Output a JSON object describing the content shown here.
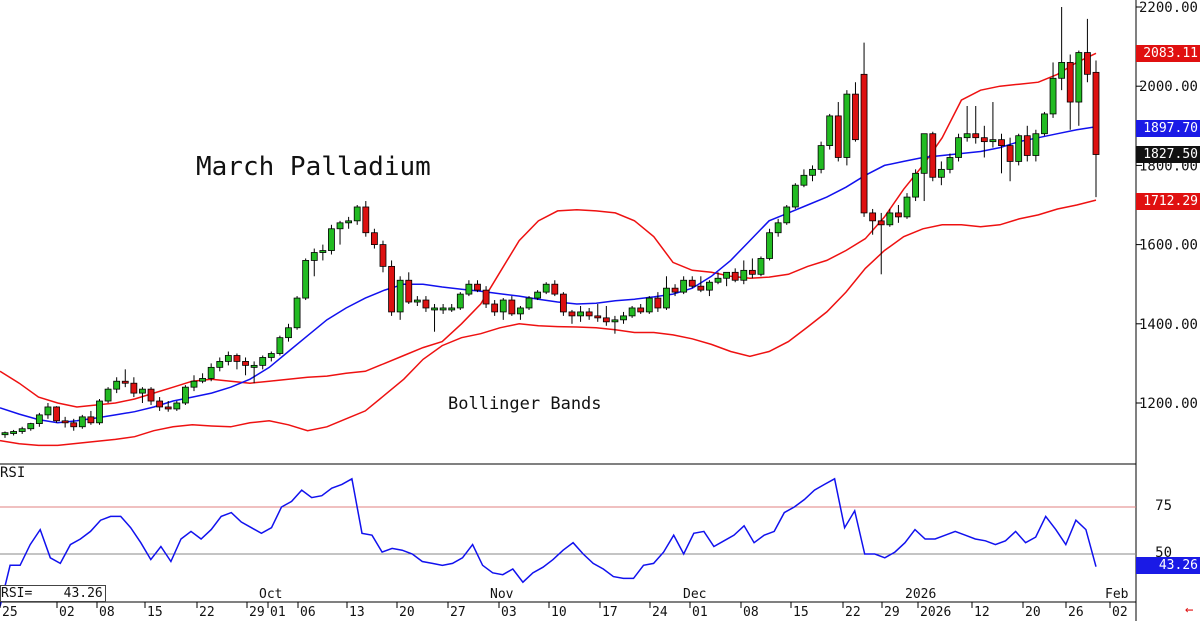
{
  "title": "March Palladium",
  "annotation": "Bollinger Bands",
  "rsi_label": "RSI",
  "rsi_readout": "RSI=    43.26",
  "price_tags": {
    "upper": "2083.11",
    "middle": "1897.70",
    "last": "1827.50",
    "lower": "1712.29"
  },
  "rsi_tag": "43.26",
  "colors": {
    "up_candle": "#22bb22",
    "down_candle": "#dd1111",
    "bollinger_outer": "#ee1111",
    "bollinger_middle": "#1111ee",
    "rsi_line": "#1111ee",
    "rsi_overbought_line": "#e08080",
    "rsi_mid_line": "#888888"
  },
  "chart_data": [
    {
      "type": "candlestick",
      "title": "March Palladium",
      "y_ticks": [
        "1200.00",
        "1400.00",
        "1600.00",
        "1800.00",
        "2000.00",
        "2200.00"
      ],
      "ylim": [
        1050,
        2200
      ],
      "x_labels": [
        "25",
        "02",
        "08",
        "15",
        "22",
        "29",
        "01",
        "06",
        "13",
        "20",
        "27",
        "03",
        "10",
        "17",
        "24",
        "01",
        "08",
        "15",
        "22",
        "29",
        "2026",
        "12",
        "20",
        "26",
        "02"
      ],
      "month_labels": [
        "Oct",
        "Nov",
        "Dec",
        "2026",
        "Feb"
      ],
      "candles": [
        [
          1120,
          1128,
          1112,
          1125
        ],
        [
          1125,
          1132,
          1118,
          1128
        ],
        [
          1128,
          1140,
          1122,
          1135
        ],
        [
          1135,
          1150,
          1130,
          1148
        ],
        [
          1148,
          1175,
          1140,
          1170
        ],
        [
          1170,
          1200,
          1160,
          1190
        ],
        [
          1190,
          1192,
          1150,
          1155
        ],
        [
          1155,
          1165,
          1138,
          1150
        ],
        [
          1150,
          1160,
          1130,
          1140
        ],
        [
          1140,
          1170,
          1135,
          1165
        ],
        [
          1165,
          1180,
          1145,
          1150
        ],
        [
          1150,
          1210,
          1145,
          1205
        ],
        [
          1205,
          1240,
          1200,
          1235
        ],
        [
          1235,
          1265,
          1225,
          1255
        ],
        [
          1255,
          1285,
          1240,
          1250
        ],
        [
          1250,
          1265,
          1215,
          1225
        ],
        [
          1225,
          1240,
          1200,
          1235
        ],
        [
          1235,
          1240,
          1195,
          1205
        ],
        [
          1205,
          1215,
          1180,
          1190
        ],
        [
          1190,
          1205,
          1178,
          1185
        ],
        [
          1185,
          1205,
          1180,
          1200
        ],
        [
          1200,
          1245,
          1195,
          1240
        ],
        [
          1240,
          1270,
          1230,
          1255
        ],
        [
          1255,
          1275,
          1250,
          1262
        ],
        [
          1262,
          1300,
          1255,
          1290
        ],
        [
          1290,
          1315,
          1280,
          1305
        ],
        [
          1305,
          1330,
          1295,
          1320
        ],
        [
          1320,
          1325,
          1285,
          1305
        ],
        [
          1305,
          1315,
          1270,
          1295
        ],
        [
          1295,
          1305,
          1250,
          1295
        ],
        [
          1295,
          1320,
          1285,
          1315
        ],
        [
          1315,
          1330,
          1305,
          1325
        ],
        [
          1325,
          1370,
          1320,
          1365
        ],
        [
          1365,
          1400,
          1355,
          1390
        ],
        [
          1390,
          1470,
          1385,
          1465
        ],
        [
          1465,
          1565,
          1460,
          1560
        ],
        [
          1560,
          1590,
          1520,
          1580
        ],
        [
          1580,
          1600,
          1560,
          1585
        ],
        [
          1585,
          1650,
          1575,
          1640
        ],
        [
          1640,
          1660,
          1600,
          1655
        ],
        [
          1655,
          1670,
          1640,
          1660
        ],
        [
          1660,
          1700,
          1650,
          1695
        ],
        [
          1695,
          1710,
          1620,
          1630
        ],
        [
          1630,
          1640,
          1590,
          1600
        ],
        [
          1600,
          1610,
          1530,
          1545
        ],
        [
          1545,
          1560,
          1420,
          1430
        ],
        [
          1430,
          1520,
          1410,
          1510
        ],
        [
          1510,
          1530,
          1450,
          1455
        ],
        [
          1455,
          1470,
          1445,
          1460
        ],
        [
          1460,
          1470,
          1430,
          1440
        ],
        [
          1440,
          1450,
          1380,
          1440
        ],
        [
          1440,
          1450,
          1425,
          1440
        ],
        [
          1440,
          1450,
          1430,
          1440
        ],
        [
          1440,
          1480,
          1435,
          1475
        ],
        [
          1475,
          1510,
          1470,
          1500
        ],
        [
          1500,
          1510,
          1480,
          1485
        ],
        [
          1485,
          1495,
          1440,
          1450
        ],
        [
          1450,
          1460,
          1420,
          1430
        ],
        [
          1430,
          1465,
          1410,
          1460
        ],
        [
          1460,
          1470,
          1420,
          1425
        ],
        [
          1425,
          1445,
          1410,
          1440
        ],
        [
          1440,
          1470,
          1435,
          1465
        ],
        [
          1465,
          1485,
          1460,
          1480
        ],
        [
          1480,
          1505,
          1475,
          1500
        ],
        [
          1500,
          1510,
          1470,
          1475
        ],
        [
          1475,
          1480,
          1420,
          1430
        ],
        [
          1430,
          1435,
          1400,
          1420
        ],
        [
          1420,
          1445,
          1405,
          1430
        ],
        [
          1430,
          1440,
          1410,
          1420
        ],
        [
          1420,
          1450,
          1405,
          1415
        ],
        [
          1415,
          1445,
          1395,
          1405
        ],
        [
          1405,
          1420,
          1375,
          1410
        ],
        [
          1410,
          1430,
          1400,
          1420
        ],
        [
          1420,
          1445,
          1415,
          1440
        ],
        [
          1440,
          1450,
          1425,
          1430
        ],
        [
          1430,
          1470,
          1425,
          1465
        ],
        [
          1465,
          1480,
          1430,
          1440
        ],
        [
          1440,
          1520,
          1435,
          1490
        ],
        [
          1490,
          1500,
          1470,
          1480
        ],
        [
          1480,
          1520,
          1475,
          1510
        ],
        [
          1510,
          1520,
          1490,
          1495
        ],
        [
          1495,
          1520,
          1480,
          1485
        ],
        [
          1485,
          1510,
          1470,
          1505
        ],
        [
          1505,
          1530,
          1500,
          1515
        ],
        [
          1515,
          1525,
          1495,
          1530
        ],
        [
          1530,
          1540,
          1505,
          1510
        ],
        [
          1510,
          1560,
          1500,
          1535
        ],
        [
          1535,
          1565,
          1515,
          1525
        ],
        [
          1525,
          1570,
          1520,
          1565
        ],
        [
          1565,
          1640,
          1560,
          1630
        ],
        [
          1630,
          1665,
          1620,
          1655
        ],
        [
          1655,
          1700,
          1650,
          1695
        ],
        [
          1695,
          1755,
          1690,
          1750
        ],
        [
          1750,
          1790,
          1745,
          1775
        ],
        [
          1775,
          1800,
          1760,
          1790
        ],
        [
          1790,
          1860,
          1780,
          1850
        ],
        [
          1850,
          1930,
          1840,
          1925
        ],
        [
          1925,
          1960,
          1810,
          1820
        ],
        [
          1820,
          1990,
          1800,
          1980
        ],
        [
          1980,
          2010,
          1860,
          1865
        ],
        [
          2030,
          2110,
          1670,
          1680
        ],
        [
          1680,
          1690,
          1625,
          1660
        ],
        [
          1660,
          1680,
          1525,
          1650
        ],
        [
          1650,
          1690,
          1645,
          1680
        ],
        [
          1680,
          1700,
          1655,
          1670
        ],
        [
          1670,
          1730,
          1665,
          1720
        ],
        [
          1720,
          1790,
          1710,
          1780
        ],
        [
          1780,
          1870,
          1710,
          1880
        ],
        [
          1880,
          1885,
          1760,
          1770
        ],
        [
          1770,
          1810,
          1750,
          1790
        ],
        [
          1790,
          1830,
          1780,
          1820
        ],
        [
          1820,
          1880,
          1810,
          1870
        ],
        [
          1870,
          1950,
          1860,
          1880
        ],
        [
          1880,
          1950,
          1855,
          1870
        ],
        [
          1870,
          1900,
          1820,
          1860
        ],
        [
          1860,
          1960,
          1845,
          1865
        ],
        [
          1865,
          1880,
          1780,
          1850
        ],
        [
          1850,
          1870,
          1760,
          1810
        ],
        [
          1810,
          1880,
          1800,
          1875
        ],
        [
          1875,
          1900,
          1810,
          1825
        ],
        [
          1825,
          1890,
          1810,
          1880
        ],
        [
          1880,
          1935,
          1875,
          1930
        ],
        [
          1930,
          2060,
          1920,
          2020
        ],
        [
          2020,
          2200,
          1990,
          2060
        ],
        [
          2060,
          2080,
          1890,
          1960
        ],
        [
          1960,
          2090,
          1900,
          2085
        ],
        [
          2085,
          2170,
          2010,
          2030
        ],
        [
          2035,
          2065,
          1720,
          1827.5
        ]
      ],
      "series": [
        {
          "name": "Bollinger Bands",
          "upper": [
            1280,
            1250,
            1215,
            1200,
            1190,
            1195,
            1200,
            1210,
            1225,
            1240,
            1255,
            1260,
            1255,
            1250,
            1255,
            1260,
            1265,
            1268,
            1275,
            1280,
            1300,
            1320,
            1340,
            1355,
            1400,
            1450,
            1530,
            1610,
            1660,
            1685,
            1688,
            1685,
            1680,
            1660,
            1620,
            1555,
            1535,
            1530,
            1520,
            1515,
            1518,
            1525,
            1545,
            1560,
            1585,
            1615,
            1670,
            1740,
            1800,
            1870,
            1965,
            1990,
            2000,
            2005,
            2010,
            2030,
            2060,
            2083.11
          ],
          "middle": [
            1188,
            1172,
            1158,
            1150,
            1155,
            1162,
            1170,
            1178,
            1190,
            1205,
            1215,
            1225,
            1240,
            1260,
            1290,
            1330,
            1370,
            1410,
            1440,
            1465,
            1485,
            1500,
            1500,
            1493,
            1487,
            1482,
            1476,
            1470,
            1462,
            1455,
            1450,
            1452,
            1458,
            1462,
            1468,
            1475,
            1490,
            1520,
            1560,
            1610,
            1660,
            1680,
            1700,
            1720,
            1745,
            1775,
            1800,
            1810,
            1820,
            1825,
            1830,
            1835,
            1845,
            1860,
            1870,
            1880,
            1890,
            1897.7
          ],
          "lower": [
            1105,
            1097,
            1093,
            1093,
            1098,
            1103,
            1108,
            1115,
            1130,
            1140,
            1145,
            1142,
            1140,
            1150,
            1155,
            1145,
            1130,
            1140,
            1160,
            1180,
            1220,
            1260,
            1310,
            1345,
            1365,
            1375,
            1390,
            1400,
            1395,
            1393,
            1392,
            1390,
            1385,
            1378,
            1378,
            1372,
            1362,
            1348,
            1330,
            1318,
            1330,
            1355,
            1392,
            1430,
            1480,
            1540,
            1585,
            1620,
            1640,
            1650,
            1650,
            1645,
            1650,
            1665,
            1675,
            1690,
            1700,
            1712.29
          ]
        }
      ]
    },
    {
      "type": "line",
      "title": "RSI",
      "y_ticks": [
        "50",
        "75"
      ],
      "ylim": [
        22,
        95
      ],
      "series": [
        {
          "name": "RSI",
          "values": [
            22,
            44,
            44,
            55,
            63,
            48,
            45,
            55,
            58,
            62,
            68,
            70,
            70,
            64,
            56,
            47,
            54,
            46,
            58,
            62,
            58,
            63,
            70,
            72,
            67,
            64,
            61,
            64,
            75,
            78,
            84,
            80,
            81,
            85,
            87,
            90,
            61,
            60,
            51,
            53,
            52,
            50,
            46,
            45,
            44,
            45,
            48,
            55,
            44,
            40,
            39,
            42,
            35,
            40,
            43,
            47,
            52,
            56,
            50,
            45,
            42,
            38,
            37,
            37,
            44,
            45,
            51,
            60,
            50,
            61,
            62,
            54,
            57,
            60,
            65,
            56,
            60,
            62,
            72,
            75,
            79,
            84,
            87,
            90,
            64,
            73,
            50,
            50,
            48,
            51,
            56,
            63,
            58,
            58,
            60,
            62,
            60,
            58,
            57,
            55,
            57,
            62,
            56,
            59,
            70,
            63,
            55,
            68,
            63,
            43.26
          ]
        }
      ]
    }
  ]
}
